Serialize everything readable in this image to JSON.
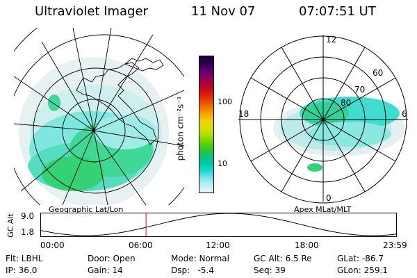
{
  "header": {
    "title": "Ultraviolet Imager",
    "date": "11 Nov 07",
    "time": "07:07:51 UT"
  },
  "colorbar": {
    "unit_label": "photon cm⁻²s⁻¹",
    "ticks": [
      "100",
      "10"
    ],
    "colors_top_to_bottom": [
      "#1a0033",
      "#2a0050",
      "#5a0070",
      "#8a0060",
      "#b5002a",
      "#d41414",
      "#e63a00",
      "#f07000",
      "#f5a000",
      "#f2d000",
      "#d8e000",
      "#a8e000",
      "#6cd400",
      "#2fc62a",
      "#10c07a",
      "#00c8b0",
      "#20d8d8",
      "#7fe6e6",
      "#c0f0f0",
      "#e8f8f8"
    ]
  },
  "left_map": {
    "caption": "Geographic Lat/Lon"
  },
  "right_map": {
    "caption": "Apex MLat/MLT",
    "mlt_labels": {
      "top": "12",
      "left": "18",
      "right": "6",
      "bottom": "0"
    },
    "lat_labels": [
      "60",
      "70",
      "80"
    ]
  },
  "gc_alt_plot": {
    "ylabel": "GC Alt",
    "y_ticks": [
      "9.0",
      "1.8"
    ],
    "x_ticks": [
      "00:00",
      "06:00",
      "12:00",
      "18:00",
      "23:59"
    ],
    "marker_time_hours": 7.13,
    "marker_color": "#e60000"
  },
  "status": {
    "flt": "Flt: LBHL",
    "door": "Door: Open",
    "mode": "Mode: Normal",
    "gc_alt": "GC Alt: 6.5 Re",
    "glat": "GLat: -86.7",
    "ip": "IP: 36.0",
    "gain": "Gain: 14",
    "dsp": "Dsp:   -5.4",
    "seq": "Seq: 39",
    "glon": "GLon: 259.1"
  }
}
